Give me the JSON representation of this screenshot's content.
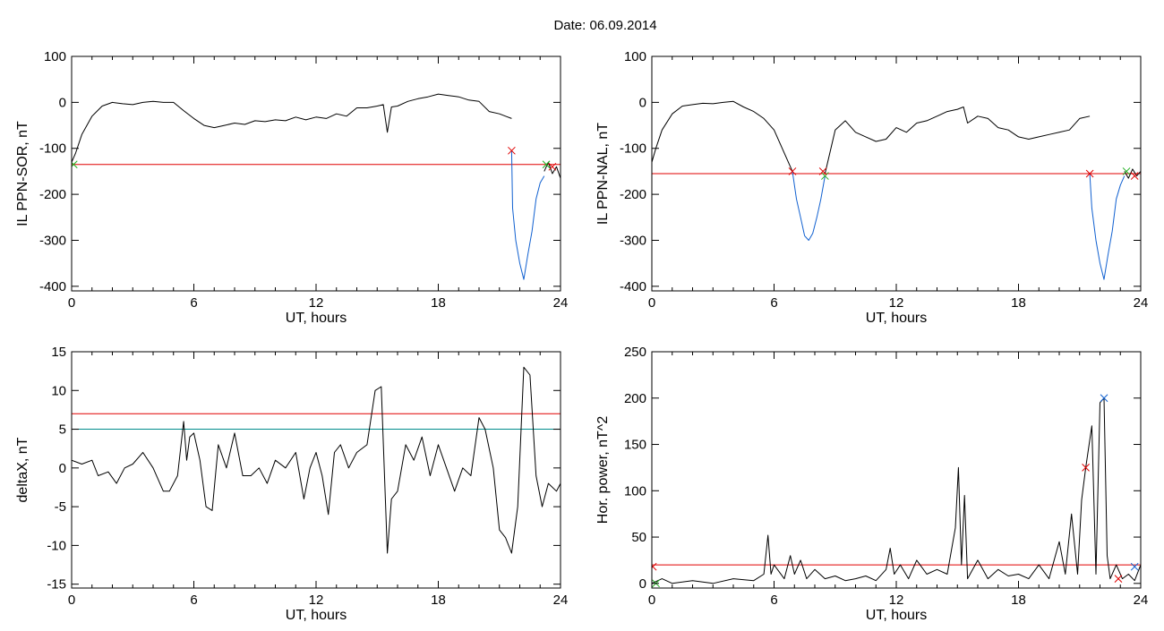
{
  "figure": {
    "title": "Date:  06.09.2014"
  },
  "chart_data": [
    {
      "id": "p1",
      "type": "line",
      "xlabel": "UT, hours",
      "ylabel": "IL PPN-SOR, nT",
      "xlim": [
        0,
        24
      ],
      "ylim": [
        -410,
        100
      ],
      "xticks": [
        0,
        6,
        12,
        18,
        24
      ],
      "yticks": [
        100,
        0,
        -100,
        -200,
        -300,
        -400
      ],
      "hlines": [
        {
          "value": -135,
          "color": "#e00000"
        }
      ],
      "series": [
        {
          "color": "#000000",
          "x": [
            0,
            0.2,
            0.5,
            1,
            1.5,
            2,
            2.5,
            3,
            3.5,
            4,
            4.5,
            5,
            5.5,
            6,
            6.5,
            7,
            7.5,
            8,
            8.5,
            9,
            9.5,
            10,
            10.5,
            11,
            11.5,
            12,
            12.5,
            13,
            13.5,
            14,
            14.5,
            15,
            15.3,
            15.5,
            15.7,
            16,
            16.5,
            17,
            17.5,
            18,
            18.5,
            19,
            19.5,
            20,
            20.5,
            21,
            21.3,
            21.6
          ],
          "y": [
            -130,
            -110,
            -70,
            -30,
            -8,
            0,
            -3,
            -5,
            0,
            2,
            0,
            0,
            -18,
            -35,
            -50,
            -55,
            -50,
            -45,
            -48,
            -40,
            -42,
            -38,
            -40,
            -32,
            -38,
            -32,
            -35,
            -25,
            -30,
            -12,
            -12,
            -8,
            -5,
            -65,
            -10,
            -8,
            2,
            8,
            12,
            18,
            15,
            12,
            5,
            2,
            -20,
            -25,
            -30,
            -35
          ]
        },
        {
          "color": "#1060d0",
          "x": [
            21.6,
            21.65,
            21.8,
            22.0,
            22.2,
            22.4,
            22.6,
            22.8,
            23.0,
            23.2
          ],
          "y": [
            -105,
            -230,
            -300,
            -350,
            -385,
            -330,
            -280,
            -210,
            -175,
            -160
          ]
        },
        {
          "color": "#000000",
          "x": [
            23.2,
            23.4,
            23.6,
            23.8,
            24
          ],
          "y": [
            -150,
            -130,
            -155,
            -140,
            -165
          ]
        }
      ],
      "markers": [
        {
          "x": 21.6,
          "y": -105,
          "color": "#e00000"
        },
        {
          "x": 23.3,
          "y": -135,
          "color": "#20b020"
        },
        {
          "x": 23.6,
          "y": -140,
          "color": "#e00000"
        },
        {
          "x": 0.1,
          "y": -135,
          "color": "#20b020"
        }
      ]
    },
    {
      "id": "p2",
      "type": "line",
      "xlabel": "UT, hours",
      "ylabel": "IL PPN-NAL, nT",
      "xlim": [
        0,
        24
      ],
      "ylim": [
        -410,
        100
      ],
      "xticks": [
        0,
        6,
        12,
        18,
        24
      ],
      "yticks": [
        100,
        0,
        -100,
        -200,
        -300,
        -400
      ],
      "hlines": [
        {
          "value": -155,
          "color": "#e00000"
        }
      ],
      "series": [
        {
          "color": "#000000",
          "x": [
            0,
            0.2,
            0.5,
            1,
            1.5,
            2,
            2.5,
            3,
            3.5,
            4,
            4.5,
            5,
            5.5,
            6,
            6.5,
            6.9
          ],
          "y": [
            -130,
            -100,
            -60,
            -25,
            -8,
            -5,
            -2,
            -3,
            0,
            2,
            -10,
            -20,
            -35,
            -60,
            -110,
            -150
          ]
        },
        {
          "color": "#1060d0",
          "x": [
            6.9,
            7.1,
            7.3,
            7.5,
            7.7,
            7.9,
            8.1,
            8.3,
            8.5
          ],
          "y": [
            -150,
            -210,
            -250,
            -290,
            -300,
            -285,
            -250,
            -210,
            -160
          ]
        },
        {
          "color": "#000000",
          "x": [
            8.5,
            9,
            9.5,
            10,
            10.5,
            11,
            11.5,
            12,
            12.5,
            13,
            13.5,
            14,
            14.5,
            15,
            15.3,
            15.5,
            16,
            16.5,
            17,
            17.5,
            18,
            18.5,
            19,
            19.5,
            20,
            20.5,
            21,
            21.5
          ],
          "y": [
            -155,
            -60,
            -40,
            -65,
            -75,
            -85,
            -80,
            -55,
            -65,
            -45,
            -40,
            -30,
            -20,
            -15,
            -10,
            -45,
            -30,
            -35,
            -55,
            -60,
            -75,
            -80,
            -75,
            -70,
            -65,
            -60,
            -35,
            -30
          ]
        },
        {
          "color": "#1060d0",
          "x": [
            21.5,
            21.6,
            21.8,
            22.0,
            22.2,
            22.4,
            22.6,
            22.8,
            23.0,
            23.2
          ],
          "y": [
            -155,
            -230,
            -300,
            -350,
            -385,
            -330,
            -280,
            -210,
            -180,
            -160
          ]
        },
        {
          "color": "#000000",
          "x": [
            23.2,
            23.4,
            23.6,
            23.8,
            24
          ],
          "y": [
            -150,
            -165,
            -145,
            -160,
            -150
          ]
        }
      ],
      "markers": [
        {
          "x": 6.9,
          "y": -150,
          "color": "#e00000"
        },
        {
          "x": 8.5,
          "y": -160,
          "color": "#20b020"
        },
        {
          "x": 8.4,
          "y": -150,
          "color": "#e00000"
        },
        {
          "x": 21.5,
          "y": -155,
          "color": "#e00000"
        },
        {
          "x": 23.3,
          "y": -150,
          "color": "#20b020"
        },
        {
          "x": 23.7,
          "y": -160,
          "color": "#e00000"
        }
      ]
    },
    {
      "id": "p3",
      "type": "line",
      "xlabel": "UT, hours",
      "ylabel": "deltaX, nT",
      "xlim": [
        0,
        24
      ],
      "ylim": [
        -15.5,
        15
      ],
      "xticks": [
        0,
        6,
        12,
        18,
        24
      ],
      "yticks": [
        15,
        10,
        5,
        0,
        -5,
        -10,
        -15
      ],
      "hlines": [
        {
          "value": 7,
          "color": "#e00000"
        },
        {
          "value": 5,
          "color": "#008c8c"
        }
      ],
      "series": [
        {
          "color": "#000000",
          "x": [
            0,
            0.5,
            1,
            1.3,
            1.8,
            2.2,
            2.6,
            3.0,
            3.5,
            4.0,
            4.5,
            4.8,
            5.2,
            5.5,
            5.65,
            5.8,
            6.0,
            6.3,
            6.6,
            6.9,
            7.2,
            7.6,
            8.0,
            8.4,
            8.8,
            9.2,
            9.6,
            10.0,
            10.5,
            11.0,
            11.4,
            11.7,
            12.0,
            12.3,
            12.6,
            12.9,
            13.2,
            13.6,
            14.0,
            14.5,
            14.9,
            15.2,
            15.5,
            15.7,
            16.0,
            16.4,
            16.8,
            17.2,
            17.6,
            18.0,
            18.4,
            18.8,
            19.2,
            19.6,
            20.0,
            20.3,
            20.7,
            21.0,
            21.3,
            21.6,
            21.9,
            22.2,
            22.5,
            22.8,
            23.1,
            23.4,
            23.8,
            24
          ],
          "y": [
            1,
            0.5,
            1,
            -1,
            -0.5,
            -2,
            0,
            0.5,
            2,
            0,
            -3,
            -3,
            -1,
            6,
            1,
            4,
            4.5,
            1,
            -5,
            -5.5,
            3,
            0,
            4.5,
            -1,
            -1,
            0,
            -2,
            1,
            0,
            2,
            -4,
            0,
            2,
            -1,
            -6,
            2,
            3,
            0,
            2,
            3,
            10,
            10.5,
            -11,
            -4,
            -3,
            3,
            1,
            4,
            -1,
            3,
            0,
            -3,
            0,
            -1,
            6.5,
            5,
            0,
            -8,
            -9,
            -11,
            -5,
            13,
            12,
            -1,
            -5,
            -2,
            -3,
            -2
          ]
        }
      ],
      "markers": []
    },
    {
      "id": "p4",
      "type": "line",
      "xlabel": "UT, hours",
      "ylabel": "Hor. power, nT^2",
      "xlim": [
        0,
        24
      ],
      "ylim": [
        -5,
        250
      ],
      "xticks": [
        0,
        6,
        12,
        18,
        24
      ],
      "yticks": [
        250,
        200,
        150,
        100,
        50,
        0
      ],
      "hlines": [
        {
          "value": 20,
          "color": "#e00000"
        }
      ],
      "series": [
        {
          "color": "#000000",
          "x": [
            0,
            0.5,
            1,
            2,
            3,
            4,
            5,
            5.5,
            5.7,
            5.85,
            6.0,
            6.5,
            6.8,
            7.0,
            7.3,
            7.6,
            8.0,
            8.5,
            9.0,
            9.5,
            10,
            10.5,
            11,
            11.5,
            11.7,
            11.9,
            12.2,
            12.6,
            13.0,
            13.5,
            14.0,
            14.5,
            14.9,
            15.05,
            15.2,
            15.35,
            15.5,
            16,
            16.5,
            17,
            17.5,
            18,
            18.5,
            19,
            19.5,
            20.0,
            20.3,
            20.6,
            20.9,
            21.1,
            21.3,
            21.6,
            21.8,
            22.0,
            22.2,
            22.35,
            22.5,
            22.8,
            23.1,
            23.4,
            23.7,
            24
          ],
          "y": [
            0,
            5,
            0,
            3,
            0,
            5,
            3,
            10,
            52,
            10,
            20,
            5,
            30,
            10,
            25,
            5,
            15,
            5,
            8,
            3,
            5,
            8,
            3,
            15,
            38,
            10,
            20,
            5,
            25,
            10,
            15,
            10,
            60,
            125,
            20,
            95,
            5,
            25,
            5,
            15,
            8,
            10,
            5,
            20,
            5,
            45,
            10,
            75,
            10,
            90,
            125,
            170,
            10,
            195,
            200,
            30,
            5,
            20,
            5,
            10,
            3,
            20
          ]
        }
      ],
      "markers": [
        {
          "x": 21.3,
          "y": 125,
          "color": "#e00000"
        },
        {
          "x": 22.2,
          "y": 200,
          "color": "#1060d0"
        },
        {
          "x": 22.9,
          "y": 5,
          "color": "#e00000"
        },
        {
          "x": 23.7,
          "y": 18,
          "color": "#1060d0"
        },
        {
          "x": 0.05,
          "y": 18,
          "color": "#e00000"
        },
        {
          "x": 0.2,
          "y": 0,
          "color": "#20b020"
        }
      ]
    }
  ]
}
